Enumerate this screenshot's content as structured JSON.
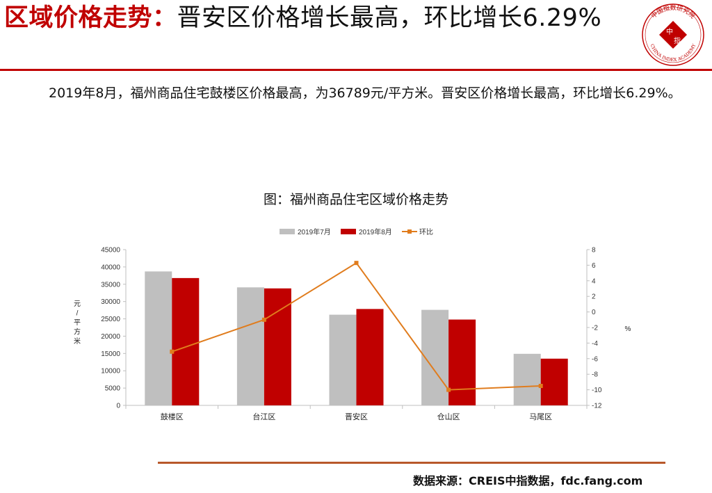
{
  "header": {
    "title_red": "区域价格走势：",
    "title_rest": "晋安区价格增长最高，环比增长6.29%"
  },
  "logo": {
    "arc_text": "中国指数研究院",
    "center_top": "中",
    "center_bottom": "指",
    "bottom_text": "CHINA INDEX ACADEMY"
  },
  "paragraph": "2019年8月，福州商品住宅鼓楼区价格最高，为36789元/平方米。晋安区价格增长最高，环比增长6.29%。",
  "chart_title": "图：福州商品住宅区域价格走势",
  "source": "数据来源：CREIS中指数据，fdc.fang.com",
  "colors": {
    "accent": "#c00000",
    "july": "#bfbfbf",
    "aug": "#c00000",
    "mom": "#e07c1d",
    "axis": "#bfbfbf",
    "footer_rule": "#b8582a"
  },
  "chart_data": {
    "type": "bar",
    "categories": [
      "鼓楼区",
      "台江区",
      "晋安区",
      "仓山区",
      "马尾区"
    ],
    "series": [
      {
        "name": "2019年7月",
        "type": "bar",
        "axis": "left",
        "values": [
          38700,
          34100,
          26200,
          27600,
          14900
        ]
      },
      {
        "name": "2019年8月",
        "type": "bar",
        "axis": "left",
        "values": [
          36789,
          33800,
          27850,
          24800,
          13500
        ]
      },
      {
        "name": "环比",
        "type": "line",
        "axis": "right",
        "values": [
          -5.1,
          -1.0,
          6.29,
          -10.0,
          -9.5
        ]
      }
    ],
    "ylabel": "元/平方米",
    "y2label": "%",
    "ylim": [
      0,
      45000
    ],
    "yticks": [
      "0",
      "5000",
      "10000",
      "15000",
      "20000",
      "25000",
      "30000",
      "35000",
      "40000",
      "45000"
    ],
    "y2lim": [
      -12,
      8
    ],
    "y2ticks": [
      "-12",
      "-10",
      "-8",
      "-6",
      "-4",
      "-2",
      "0",
      "2",
      "4",
      "6",
      "8"
    ],
    "legend_position": "top",
    "grid": false
  }
}
